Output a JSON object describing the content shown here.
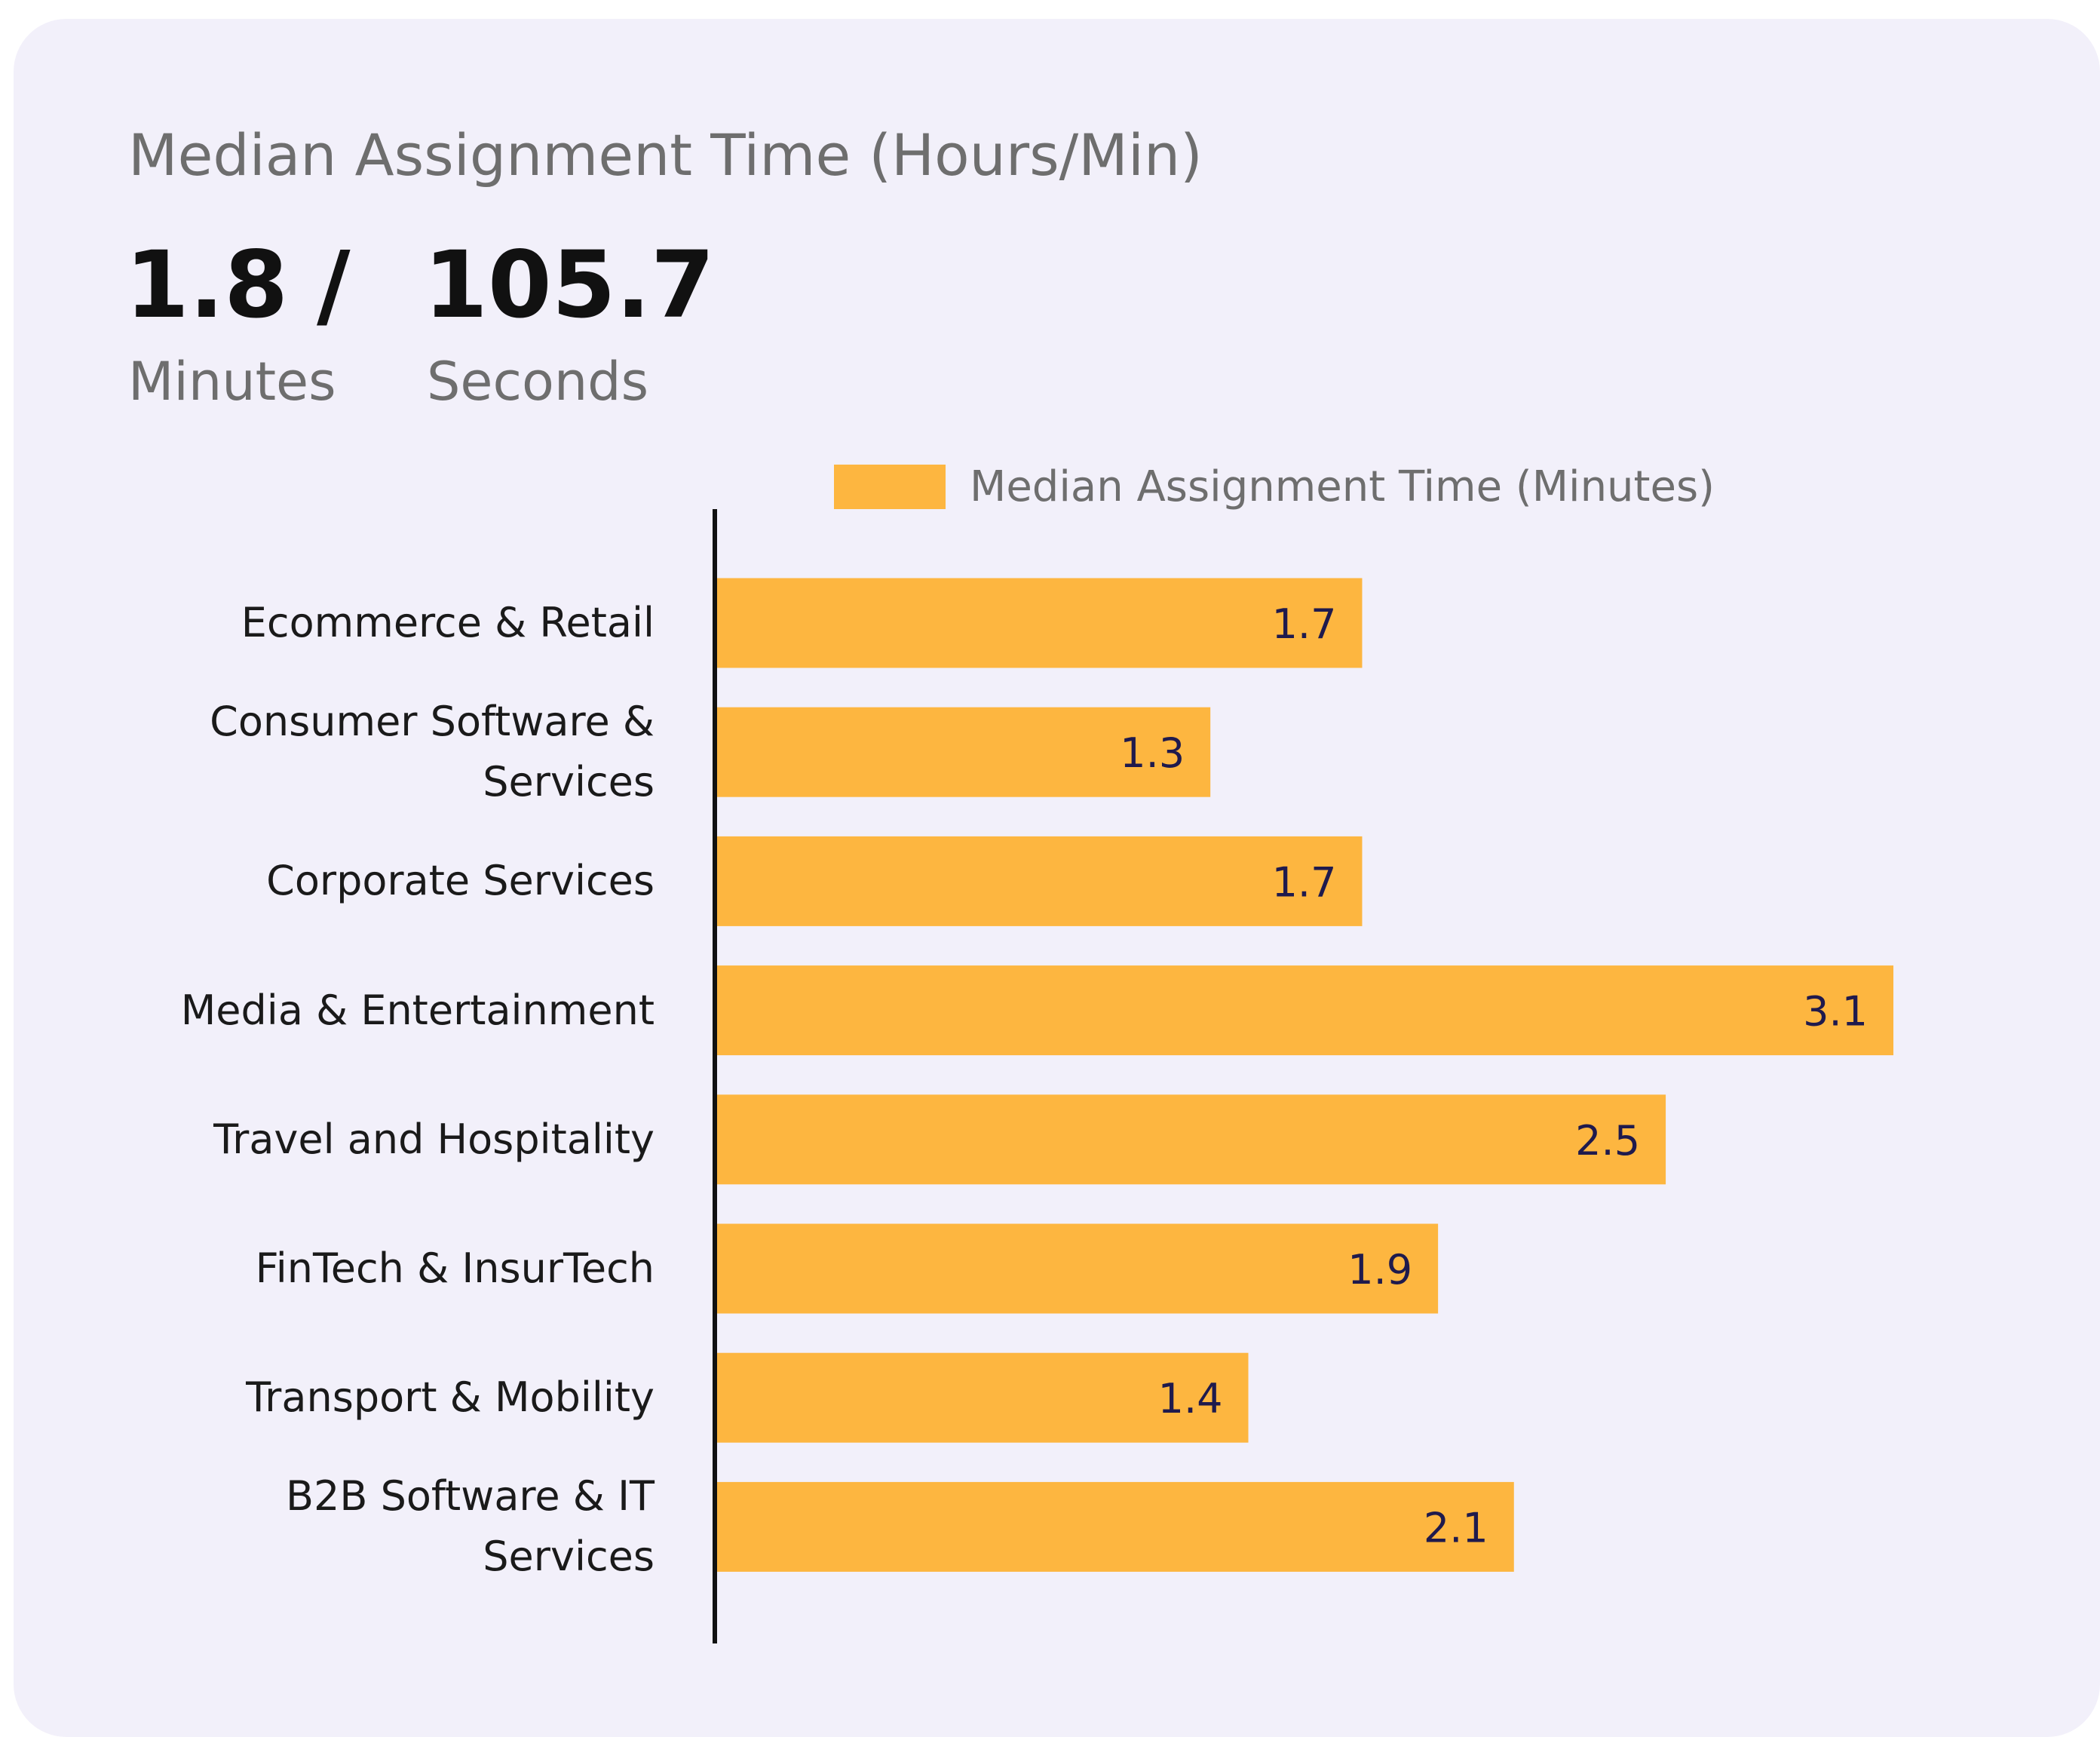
{
  "header": {
    "title": "Median Assignment Time (Hours/Min)",
    "stats": [
      {
        "value": 1.8,
        "unit": "Minutes"
      },
      {
        "value": 105.7,
        "unit": "Seconds"
      }
    ],
    "separator": "/"
  },
  "chart_data": {
    "type": "bar",
    "orientation": "horizontal",
    "categories": [
      "Ecommerce & Retail",
      "Consumer Software & Services",
      "Corporate Services",
      "Media & Entertainment",
      "Travel and Hospitality",
      "FinTech & InsurTech",
      "Transport & Mobility",
      "B2B Software & IT Services"
    ],
    "series": [
      {
        "name": "Median Assignment Time (Minutes)",
        "color": "#fdb640",
        "values": [
          1.7,
          1.3,
          1.7,
          3.1,
          2.5,
          1.9,
          1.4,
          2.1
        ]
      }
    ],
    "data_labels": true
  }
}
